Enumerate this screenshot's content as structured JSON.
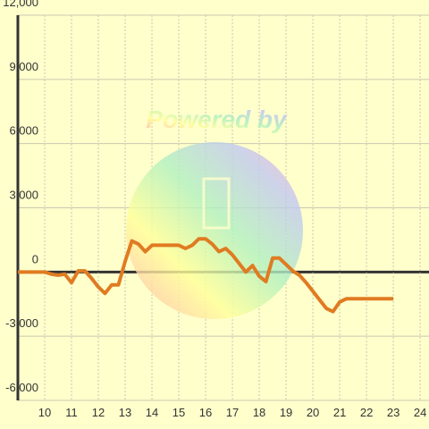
{
  "chart_data": {
    "type": "line",
    "annotation": "Powered by",
    "x": [
      9,
      10,
      10.25,
      10.5,
      10.75,
      11,
      11.25,
      11.5,
      11.75,
      12,
      12.25,
      12.5,
      12.75,
      13,
      13.25,
      13.5,
      13.75,
      14,
      14.5,
      15,
      15.25,
      15.5,
      15.75,
      16,
      16.25,
      16.5,
      16.75,
      17,
      17.25,
      17.5,
      17.75,
      18,
      18.25,
      18.5,
      18.75,
      19,
      19.25,
      19.5,
      19.75,
      20,
      20.25,
      20.5,
      20.75,
      21,
      21.25,
      21.5,
      22,
      22.5,
      23
    ],
    "series": [
      {
        "color": "#e07b22",
        "values": [
          0,
          0,
          -100,
          -150,
          -100,
          -500,
          50,
          50,
          -300,
          -700,
          -1000,
          -600,
          -600,
          500,
          1450,
          1300,
          950,
          1250,
          1250,
          1250,
          1100,
          1250,
          1550,
          1550,
          1300,
          950,
          1100,
          800,
          400,
          0,
          300,
          -200,
          -450,
          650,
          650,
          350,
          50,
          -150,
          -500,
          -900,
          -1300,
          -1700,
          -1850,
          -1400,
          -1250,
          -1250,
          -1250,
          -1250,
          -1250
        ]
      }
    ],
    "xlim": [
      9,
      24.33
    ],
    "xticks": [
      10,
      11,
      12,
      13,
      14,
      15,
      16,
      17,
      18,
      19,
      20,
      21,
      22,
      23,
      24
    ],
    "ylim": [
      -6000,
      12000
    ],
    "yticks": [
      {
        "value": -6000,
        "label": "-6,000"
      },
      {
        "value": -3000,
        "label": "-3,000"
      },
      0,
      {
        "value": 3000,
        "label": "3,000"
      },
      {
        "value": 6000,
        "label": "6,000"
      },
      {
        "value": 9000,
        "label": "9,000"
      },
      {
        "value": 12000,
        "label": "12,000"
      }
    ],
    "grid": true
  }
}
